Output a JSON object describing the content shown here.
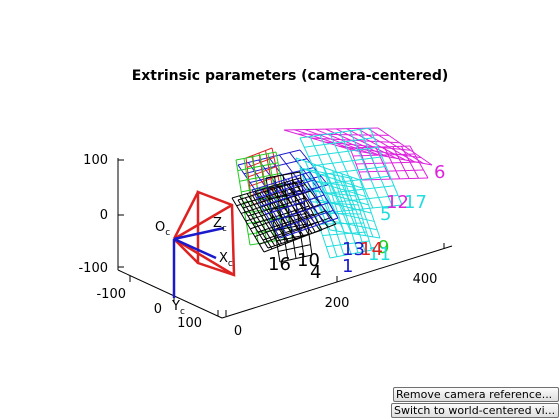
{
  "chart_data": {
    "type": "3d-plot",
    "title": "Extrinsic parameters (camera-centered)",
    "axes": {
      "z_ticks": [
        "100",
        "0",
        "-100"
      ],
      "x_ticks": [
        "-100",
        "0",
        "100"
      ],
      "y_ticks": [
        "0",
        "200",
        "400"
      ]
    },
    "camera": {
      "origin_label": "O",
      "origin_sub": "c",
      "axis_labels": [
        {
          "name": "Z",
          "sub": "c"
        },
        {
          "name": "X",
          "sub": "c"
        },
        {
          "name": "Y",
          "sub": "c"
        }
      ],
      "colors": {
        "frustum": "#dd2222",
        "axes": "#1a1acc"
      }
    },
    "boards": [
      {
        "id": "1",
        "color": "#1a1acc"
      },
      {
        "id": "4",
        "color": "#000000"
      },
      {
        "id": "5",
        "color": "#22dddd"
      },
      {
        "id": "6",
        "color": "#dd22dd"
      },
      {
        "id": "9",
        "color": "#22cc22"
      },
      {
        "id": "10",
        "color": "#000000"
      },
      {
        "id": "11",
        "color": "#22dddd"
      },
      {
        "id": "12",
        "color": "#dd22dd"
      },
      {
        "id": "13",
        "color": "#1a1acc"
      },
      {
        "id": "14",
        "color": "#dd2222"
      },
      {
        "id": "16",
        "color": "#000000"
      },
      {
        "id": "17",
        "color": "#22dddd"
      }
    ]
  },
  "buttons": {
    "remove_camera": "Remove camera reference...",
    "switch_world": "Switch to world-centered vi..."
  }
}
